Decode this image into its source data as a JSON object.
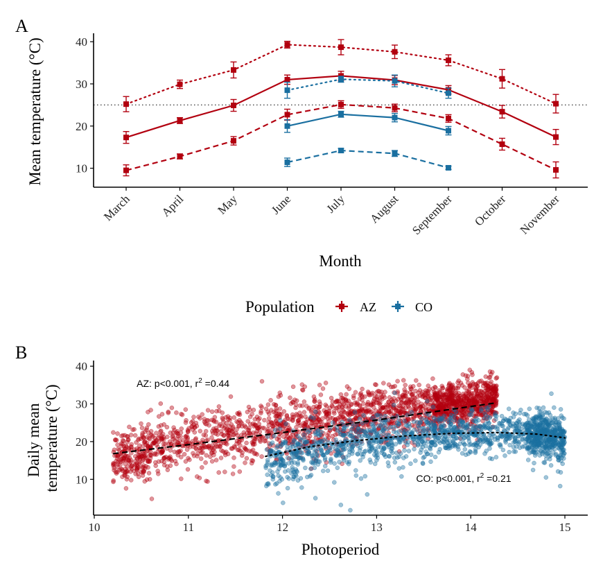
{
  "colors": {
    "AZ": "#b2000f",
    "CO": "#1a6fa0",
    "axis": "#000000",
    "reference": "#333333"
  },
  "panel_labels": {
    "a": "A",
    "b": "B"
  },
  "legend": {
    "title": "Population",
    "items": [
      "AZ",
      "CO"
    ]
  },
  "chart_data": [
    {
      "type": "line",
      "panel": "A",
      "xlabel": "Month",
      "ylabel": "Mean temperature (°C)",
      "ylim": [
        5.5,
        42
      ],
      "yticks": [
        10,
        20,
        30,
        40
      ],
      "categories": [
        "March",
        "April",
        "May",
        "June",
        "July",
        "August",
        "September",
        "October",
        "November"
      ],
      "reference_line_y": 25,
      "series": [
        {
          "name": "AZ",
          "line": "dotted",
          "values": [
            25.2,
            29.9,
            33.3,
            39.3,
            38.7,
            37.6,
            35.6,
            31.2,
            25.3
          ],
          "errors": [
            1.8,
            1.0,
            1.9,
            0.8,
            1.8,
            1.6,
            1.3,
            2.2,
            2.2
          ]
        },
        {
          "name": "AZ",
          "line": "solid",
          "values": [
            17.3,
            21.3,
            24.9,
            31.0,
            31.9,
            30.9,
            28.6,
            23.4,
            17.4
          ],
          "errors": [
            1.4,
            0.7,
            1.4,
            1.1,
            1.1,
            1.1,
            1.0,
            1.5,
            1.8
          ]
        },
        {
          "name": "AZ",
          "line": "dashed",
          "values": [
            9.5,
            12.8,
            16.5,
            22.7,
            25.1,
            24.3,
            21.8,
            15.7,
            9.6
          ],
          "errors": [
            1.3,
            0.6,
            1.0,
            1.3,
            0.9,
            0.9,
            0.9,
            1.4,
            1.9
          ]
        },
        {
          "name": "CO",
          "line": "dotted",
          "values": [
            null,
            null,
            null,
            28.5,
            31.1,
            30.7,
            27.8,
            null,
            null
          ],
          "errors": [
            null,
            null,
            null,
            1.9,
            0.7,
            1.4,
            1.2,
            null,
            null
          ]
        },
        {
          "name": "CO",
          "line": "solid",
          "values": [
            null,
            null,
            null,
            20.0,
            22.8,
            22.0,
            18.9,
            null,
            null
          ],
          "errors": [
            null,
            null,
            null,
            1.5,
            0.7,
            1.0,
            1.0,
            null,
            null
          ]
        },
        {
          "name": "CO",
          "line": "dashed",
          "values": [
            null,
            null,
            null,
            11.4,
            14.2,
            13.5,
            10.1,
            null,
            null
          ],
          "errors": [
            null,
            null,
            null,
            1.0,
            0.5,
            0.7,
            0.4,
            null,
            null
          ]
        }
      ]
    },
    {
      "type": "scatter",
      "panel": "B",
      "xlabel": "Photoperiod",
      "ylabel": [
        "Daily mean",
        "temperature (°C)"
      ],
      "xlim": [
        10.0,
        15.25
      ],
      "ylim": [
        0.5,
        41.5
      ],
      "xticks": [
        10,
        11,
        12,
        13,
        14,
        15
      ],
      "yticks": [
        10,
        20,
        30,
        40
      ],
      "annotations": [
        {
          "series": "AZ",
          "text": "AZ: p<0.001, r",
          "sup": "2",
          "tail": " =0.44",
          "x": 10.45,
          "y": 34.5
        },
        {
          "series": "CO",
          "text": "CO: p<0.001, r",
          "sup": "2",
          "tail": " =0.21",
          "x": 13.42,
          "y": 9.3
        }
      ],
      "series": [
        {
          "name": "AZ",
          "x_range": [
            10.2,
            14.28
          ],
          "trend": {
            "style": "dashed",
            "points": [
              [
                10.2,
                16.8
              ],
              [
                11.0,
                19.2
              ],
              [
                12.0,
                22.4
              ],
              [
                13.0,
                25.7
              ],
              [
                13.6,
                27.9
              ],
              [
                14.28,
                30.3
              ]
            ]
          },
          "clusters": [
            {
              "x": [
                10.2,
                10.6
              ],
              "y_center": [
                15,
                18
              ],
              "spread": 3.5,
              "n": 220
            },
            {
              "x": [
                10.6,
                11.6
              ],
              "y_center": [
                18,
                22
              ],
              "spread": 3.8,
              "n": 360
            },
            {
              "x": [
                11.6,
                12.6
              ],
              "y_center": [
                22,
                26
              ],
              "spread": 4.2,
              "n": 420
            },
            {
              "x": [
                12.6,
                13.6
              ],
              "y_center": [
                26,
                29
              ],
              "spread": 3.6,
              "n": 520
            },
            {
              "x": [
                13.6,
                14.28
              ],
              "y_center": [
                29,
                31
              ],
              "spread": 3.0,
              "n": 700
            }
          ]
        },
        {
          "name": "CO",
          "x_range": [
            11.82,
            15.0
          ],
          "trend": {
            "style": "dotted",
            "points": [
              [
                11.82,
                16.1
              ],
              [
                12.3,
                18.7
              ],
              [
                12.8,
                20.3
              ],
              [
                13.3,
                21.5
              ],
              [
                13.8,
                22.2
              ],
              [
                14.3,
                22.4
              ],
              [
                14.7,
                22.0
              ],
              [
                15.0,
                21.0
              ]
            ]
          },
          "clusters": [
            {
              "x": [
                11.82,
                12.6
              ],
              "y_center": [
                15,
                19
              ],
              "spread": 3.6,
              "n": 280
            },
            {
              "x": [
                12.6,
                13.6
              ],
              "y_center": [
                19,
                22
              ],
              "spread": 3.4,
              "n": 380
            },
            {
              "x": [
                13.6,
                14.6
              ],
              "y_center": [
                22,
                22.5
              ],
              "spread": 2.8,
              "n": 420
            },
            {
              "x": [
                14.6,
                15.0
              ],
              "y_center": [
                22,
                21
              ],
              "spread": 3.0,
              "n": 500
            }
          ],
          "outliers": [
            [
              12.62,
              3.2
            ],
            [
              12.72,
              1.8
            ],
            [
              12.35,
              5.0
            ],
            [
              12.9,
              6.0
            ],
            [
              14.95,
              8.2
            ],
            [
              14.8,
              10.5
            ]
          ]
        }
      ]
    }
  ]
}
